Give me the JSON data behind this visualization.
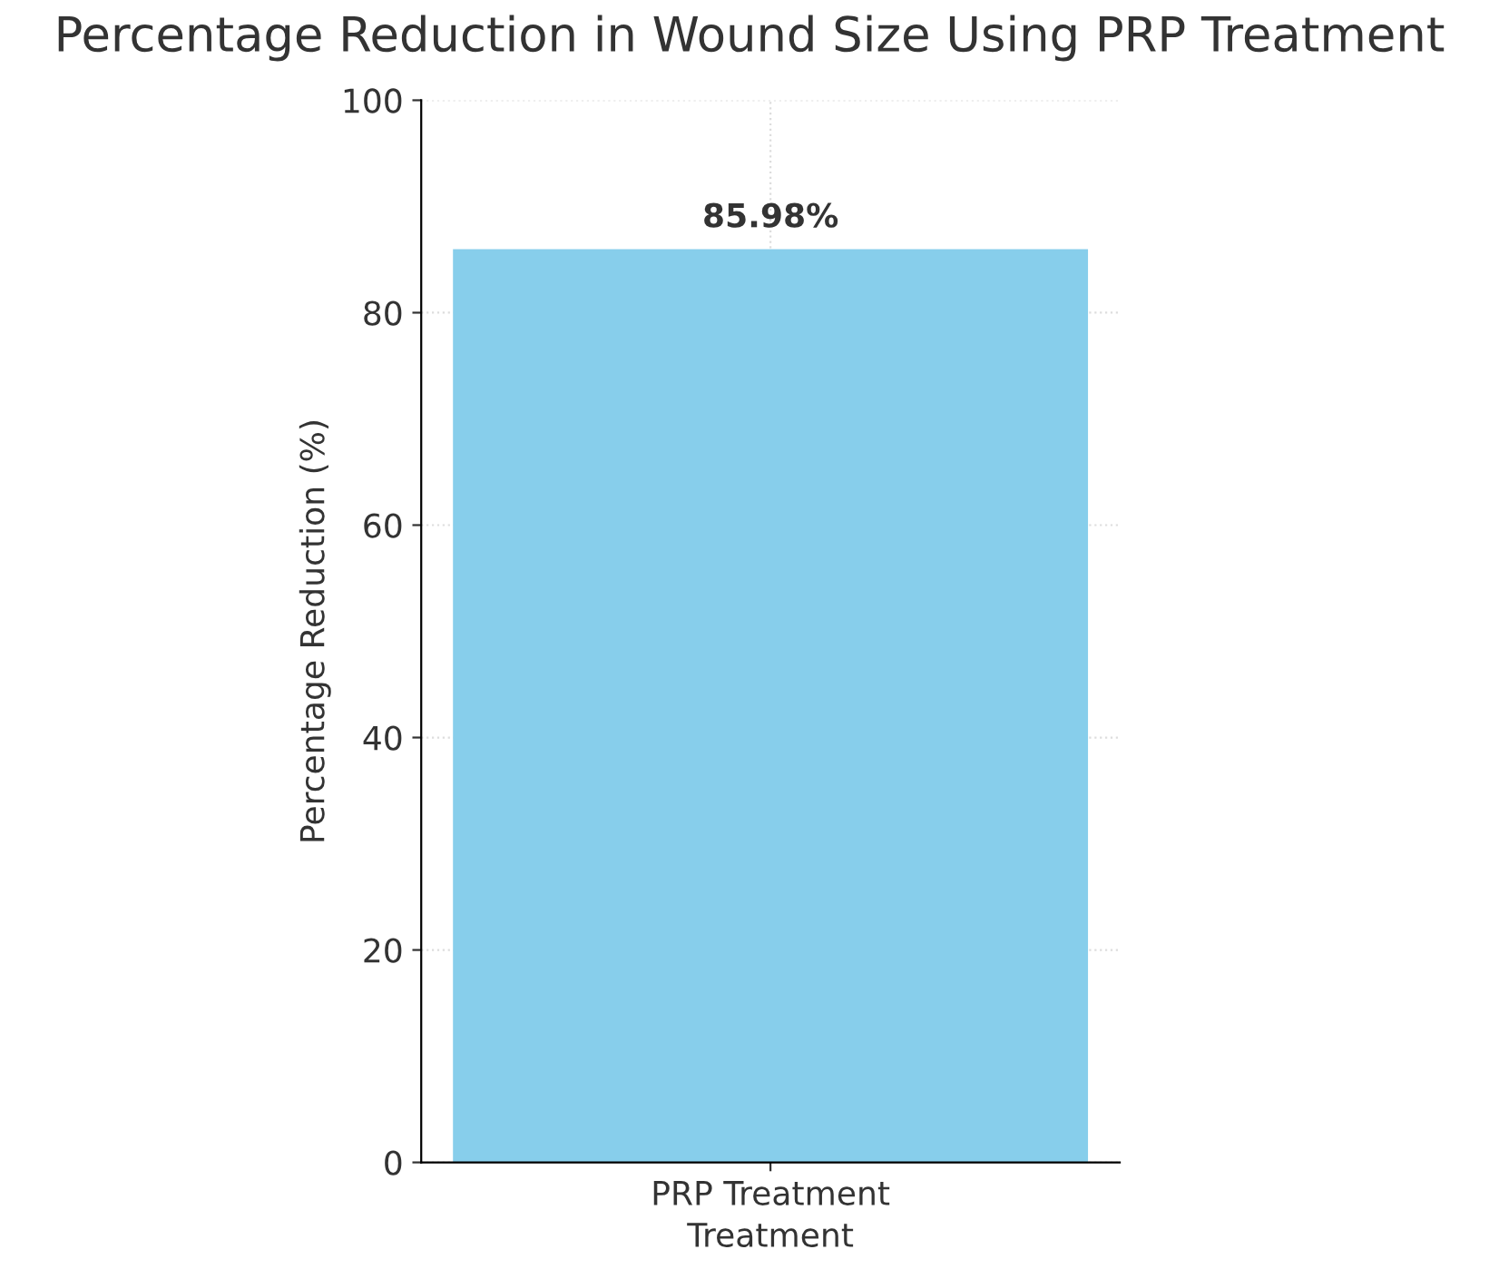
{
  "chart_data": {
    "type": "bar",
    "title": "Percentage Reduction in Wound Size Using PRP Treatment",
    "xlabel": "Treatment",
    "ylabel": "Percentage Reduction (%)",
    "categories": [
      "PRP Treatment"
    ],
    "values": [
      85.98
    ],
    "color": "#87ceeb",
    "value_labels": [
      "85.98%"
    ],
    "ylim": [
      0,
      100
    ],
    "yticks": [
      0,
      20,
      40,
      60,
      80,
      100
    ],
    "grid": true
  }
}
